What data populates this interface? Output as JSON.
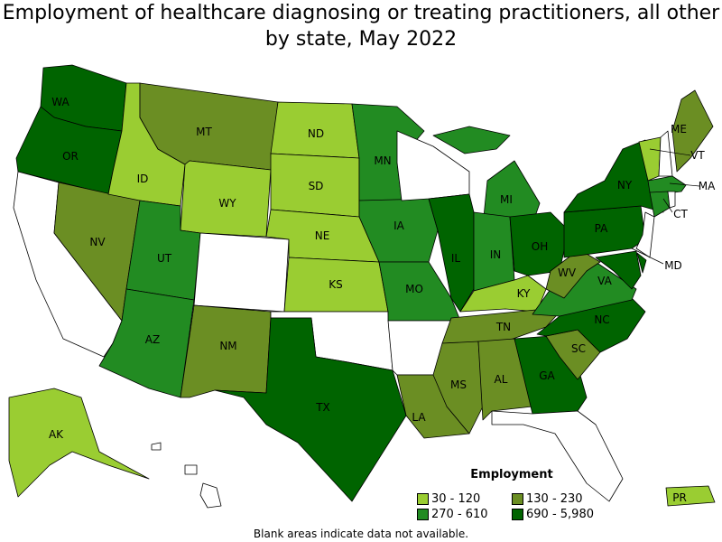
{
  "title": "Employment of healthcare diagnosing or treating practitioners, all other by state, May 2022",
  "legend": {
    "title": "Employment",
    "classes": [
      {
        "label": "30 - 120",
        "color": "#9acd32"
      },
      {
        "label": "130 - 230",
        "color": "#6b8e23"
      },
      {
        "label": "270 - 610",
        "color": "#228b22"
      },
      {
        "label": "690 - 5,980",
        "color": "#006400"
      }
    ]
  },
  "blank_color": "#ffffff",
  "note": "Blank areas indicate data not available.",
  "states": {
    "WA": 3,
    "OR": 3,
    "CA": null,
    "NV": 1,
    "ID": 0,
    "MT": 1,
    "WY": 0,
    "UT": 2,
    "AZ": 2,
    "CO": null,
    "NM": 1,
    "ND": 0,
    "SD": 0,
    "NE": 0,
    "KS": 0,
    "OK": null,
    "TX": 3,
    "MN": 2,
    "IA": 2,
    "MO": 2,
    "AR": null,
    "LA": 1,
    "WI": null,
    "IL": 3,
    "MI": 2,
    "IN": 2,
    "OH": 3,
    "KY": 0,
    "TN": 1,
    "MS": 1,
    "AL": 1,
    "GA": 3,
    "FL": null,
    "SC": 1,
    "NC": 3,
    "VA": 2,
    "WV": 1,
    "PA": 3,
    "NY": 3,
    "VT": 0,
    "NH": null,
    "ME": 1,
    "MA": 2,
    "CT": 2,
    "RI": null,
    "NJ": null,
    "DE": 3,
    "MD": 3,
    "AK": 0,
    "HI": null,
    "PR": 0
  },
  "labels": {
    "WA": "WA",
    "OR": "OR",
    "NV": "NV",
    "ID": "ID",
    "MT": "MT",
    "WY": "WY",
    "UT": "UT",
    "AZ": "AZ",
    "NM": "NM",
    "ND": "ND",
    "SD": "SD",
    "NE": "NE",
    "KS": "KS",
    "TX": "TX",
    "MN": "MN",
    "IA": "IA",
    "MO": "MO",
    "LA": "LA",
    "IL": "IL",
    "MI": "MI",
    "IN": "IN",
    "OH": "OH",
    "KY": "KY",
    "TN": "TN",
    "MS": "MS",
    "AL": "AL",
    "GA": "GA",
    "SC": "SC",
    "NC": "NC",
    "VA": "VA",
    "WV": "WV",
    "PA": "PA",
    "NY": "NY",
    "VT": "VT",
    "ME": "ME",
    "MA": "MA",
    "CT": "CT",
    "MD": "MD",
    "AK": "AK",
    "PR": "PR"
  }
}
